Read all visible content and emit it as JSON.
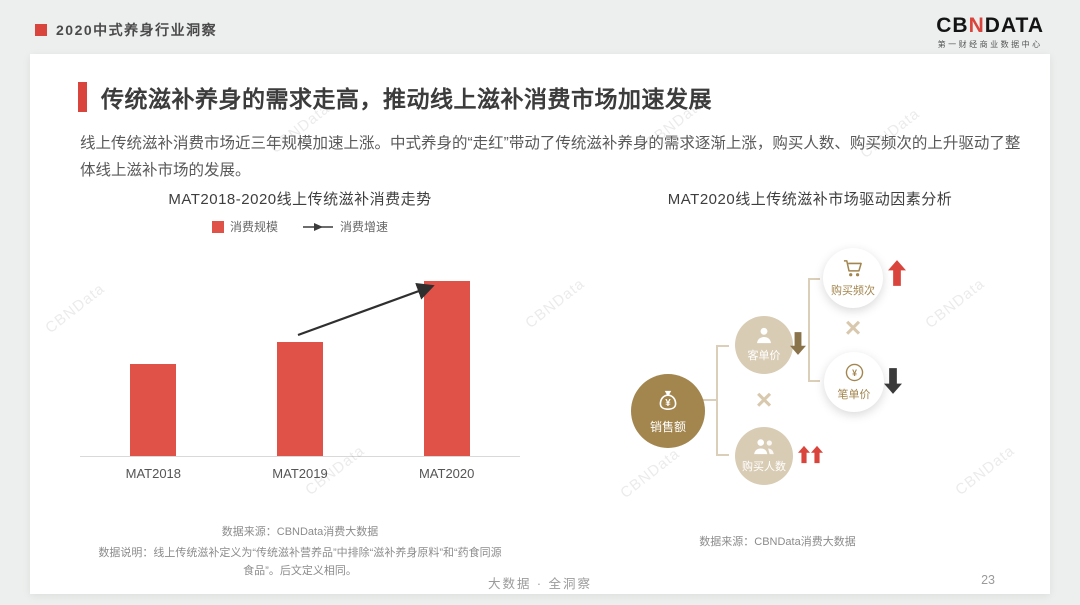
{
  "header": {
    "title": "2020中式养身行业洞察",
    "logo": {
      "brand_prefix": "CB",
      "brand_accent": "N",
      "brand_suffix": "DATA",
      "subtitle": "第一财经商业数据中心"
    }
  },
  "slide": {
    "title": "传统滋补养身的需求走高，推动线上滋补消费市场加速发展",
    "intro": "线上传统滋补消费市场近三年规模加速上涨。中式养身的“走红”带动了传统滋补养身的需求逐渐上涨，购买人数、购买频次的上升驱动了整体线上滋补市场的发展。"
  },
  "chart_data": {
    "type": "bar",
    "title": "MAT2018-2020线上传统滋补消费走势",
    "categories": [
      "MAT2018",
      "MAT2019",
      "MAT2020"
    ],
    "series": [
      {
        "name": "消费规模",
        "type": "bar",
        "color": "#E05147",
        "values": [
          41,
          51,
          78
        ]
      },
      {
        "name": "消费增速",
        "type": "line-arrow",
        "color": "#2f2f2f",
        "annotation": "上升箭头由MAT2019柱顶指向MAT2020柱顶，表示增速上行"
      }
    ],
    "xlabel": "",
    "ylabel": "",
    "axis_ticks_shown": false,
    "legend_position": "top",
    "source": "数据来源：CBNData消费大数据",
    "note": "数据说明：线上传统滋补定义为“传统滋补营养品”中排除“滋补养身原料”和“药食同源食品”。后文定义相同。"
  },
  "driver_diagram": {
    "title": "MAT2020线上传统滋补市场驱动因素分析",
    "operator": "×",
    "nodes": [
      {
        "id": "sales",
        "label": "销售额",
        "icon": "money-bag-icon",
        "trend": null
      },
      {
        "id": "avg-order-value",
        "label": "客单价",
        "icon": "person-icon",
        "trend": "下降"
      },
      {
        "id": "buyers",
        "label": "购买人数",
        "icon": "people-icon",
        "trend": "大幅上升"
      },
      {
        "id": "purchase-frequency",
        "label": "购买频次",
        "icon": "cart-icon",
        "trend": "上升"
      },
      {
        "id": "per-order-price",
        "label": "笔单价",
        "icon": "coin-icon",
        "trend": "下降"
      }
    ],
    "relations": [
      "销售额 = 客单价 × 购买人数",
      "客单价 = 购买频次 × 笔单价"
    ],
    "source": "数据来源：CBNData消费大数据"
  },
  "footer": {
    "tagline": "大数据 · 全洞察",
    "page_number": "23"
  },
  "watermark": "CBNData",
  "colors": {
    "accent_red": "#D9453C",
    "bar_red": "#E05147",
    "gold": "#A3854E",
    "tan": "#D9CCB5",
    "background": "#EDEFEE"
  }
}
